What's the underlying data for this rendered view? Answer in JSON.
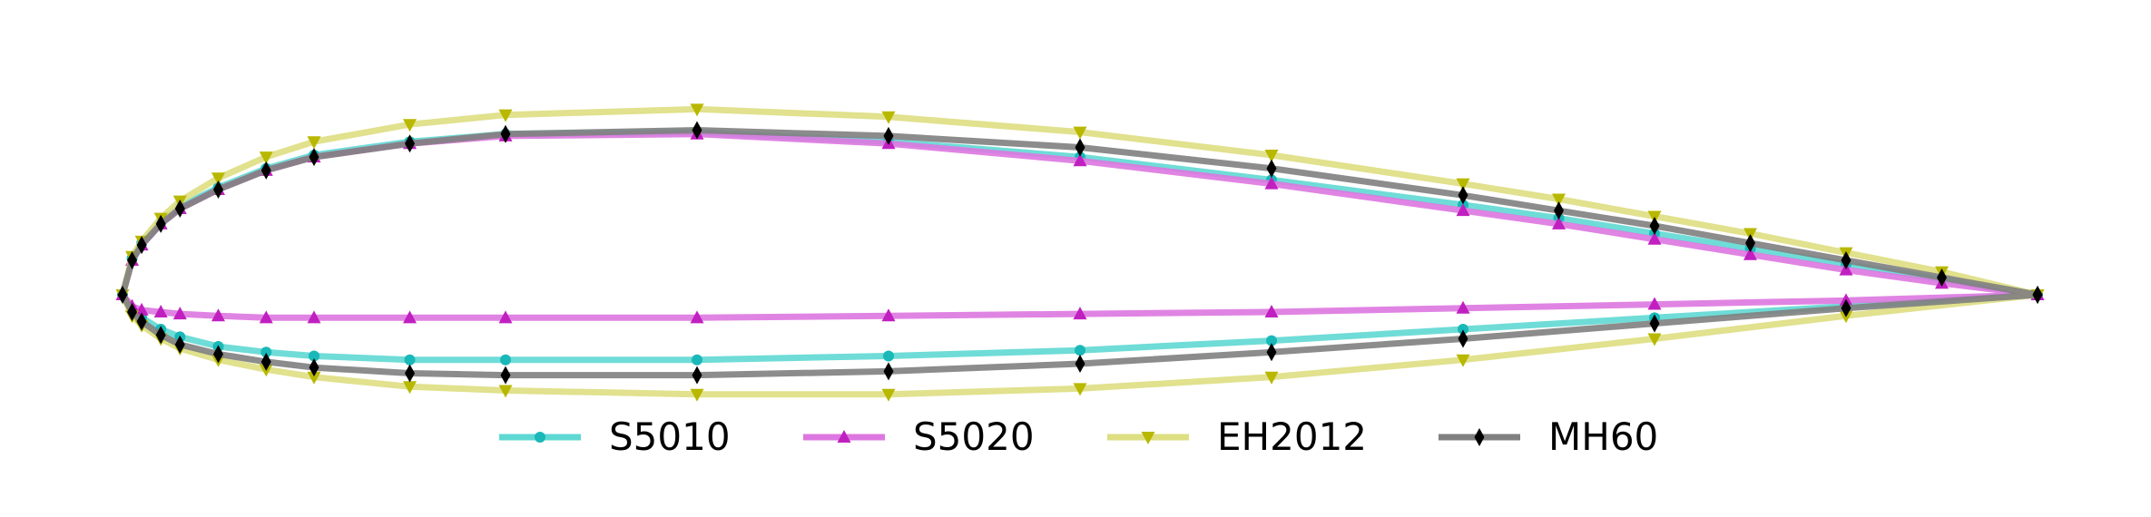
{
  "chart_data": {
    "type": "line",
    "title": "",
    "xlabel": "",
    "ylabel": "",
    "axes_visible": false,
    "aspect": "equal",
    "xlim": [
      -0.005,
      1.01
    ],
    "ylim": [
      -0.12,
      0.16
    ],
    "grid": false,
    "legend_position": "bottom-center, single row",
    "series": [
      {
        "name": "S5010",
        "color": "#5fd8d3",
        "marker": "circle",
        "marker_color": "#1ab8b8",
        "x": [
          1.0,
          0.95,
          0.9,
          0.85,
          0.8,
          0.75,
          0.7,
          0.6,
          0.5,
          0.4,
          0.3,
          0.2,
          0.15,
          0.1,
          0.075,
          0.05,
          0.03,
          0.02,
          0.01,
          0.005,
          0.0,
          0.005,
          0.01,
          0.02,
          0.03,
          0.05,
          0.075,
          0.1,
          0.15,
          0.2,
          0.3,
          0.4,
          0.5,
          0.6,
          0.7,
          0.8,
          0.9,
          1.0
        ],
        "y": [
          0.0,
          0.008,
          0.016,
          0.024,
          0.032,
          0.04,
          0.047,
          0.06,
          0.072,
          0.08,
          0.085,
          0.084,
          0.08,
          0.073,
          0.066,
          0.056,
          0.046,
          0.038,
          0.027,
          0.019,
          0.0,
          -0.008,
          -0.012,
          -0.018,
          -0.022,
          -0.027,
          -0.03,
          -0.032,
          -0.034,
          -0.034,
          -0.034,
          -0.032,
          -0.029,
          -0.024,
          -0.018,
          -0.012,
          -0.006,
          0.0
        ]
      },
      {
        "name": "S5020",
        "color": "#dd77e0",
        "marker": "triangle-up",
        "marker_color": "#c020c0",
        "x": [
          1.0,
          0.95,
          0.9,
          0.85,
          0.8,
          0.75,
          0.7,
          0.6,
          0.5,
          0.4,
          0.3,
          0.2,
          0.15,
          0.1,
          0.075,
          0.05,
          0.03,
          0.02,
          0.01,
          0.005,
          0.0,
          0.005,
          0.01,
          0.02,
          0.03,
          0.05,
          0.075,
          0.1,
          0.15,
          0.2,
          0.3,
          0.4,
          0.5,
          0.6,
          0.7,
          0.8,
          0.9,
          1.0
        ],
        "y": [
          0.0,
          0.006,
          0.013,
          0.021,
          0.029,
          0.037,
          0.044,
          0.058,
          0.07,
          0.079,
          0.084,
          0.083,
          0.079,
          0.072,
          0.065,
          0.055,
          0.045,
          0.037,
          0.026,
          0.018,
          0.0,
          -0.006,
          -0.008,
          -0.009,
          -0.01,
          -0.011,
          -0.012,
          -0.012,
          -0.012,
          -0.012,
          -0.012,
          -0.011,
          -0.01,
          -0.009,
          -0.007,
          -0.005,
          -0.003,
          0.0
        ]
      },
      {
        "name": "EH2012",
        "color": "#dede82",
        "marker": "triangle-down",
        "marker_color": "#b8b800",
        "x": [
          1.0,
          0.95,
          0.9,
          0.85,
          0.8,
          0.75,
          0.7,
          0.6,
          0.5,
          0.4,
          0.3,
          0.2,
          0.15,
          0.1,
          0.075,
          0.05,
          0.03,
          0.02,
          0.01,
          0.005,
          0.0,
          0.005,
          0.01,
          0.02,
          0.03,
          0.05,
          0.075,
          0.1,
          0.15,
          0.2,
          0.3,
          0.4,
          0.5,
          0.6,
          0.7,
          0.8,
          0.9,
          1.0
        ],
        "y": [
          0.0,
          0.012,
          0.022,
          0.032,
          0.041,
          0.05,
          0.058,
          0.073,
          0.085,
          0.093,
          0.097,
          0.094,
          0.089,
          0.08,
          0.072,
          0.061,
          0.049,
          0.04,
          0.028,
          0.02,
          0.0,
          -0.011,
          -0.016,
          -0.023,
          -0.028,
          -0.034,
          -0.039,
          -0.043,
          -0.048,
          -0.05,
          -0.052,
          -0.052,
          -0.049,
          -0.043,
          -0.034,
          -0.023,
          -0.011,
          0.0
        ]
      },
      {
        "name": "MH60",
        "color": "#808080",
        "marker": "thin-diamond",
        "marker_color": "#000000",
        "x": [
          1.0,
          0.95,
          0.9,
          0.85,
          0.8,
          0.75,
          0.7,
          0.6,
          0.5,
          0.4,
          0.3,
          0.2,
          0.15,
          0.1,
          0.075,
          0.05,
          0.03,
          0.02,
          0.01,
          0.005,
          0.0,
          0.005,
          0.01,
          0.02,
          0.03,
          0.05,
          0.075,
          0.1,
          0.15,
          0.2,
          0.3,
          0.4,
          0.5,
          0.6,
          0.7,
          0.8,
          0.9,
          1.0
        ],
        "y": [
          0.0,
          0.009,
          0.018,
          0.027,
          0.036,
          0.044,
          0.052,
          0.066,
          0.077,
          0.083,
          0.086,
          0.084,
          0.079,
          0.072,
          0.065,
          0.055,
          0.045,
          0.037,
          0.026,
          0.018,
          0.0,
          -0.009,
          -0.014,
          -0.021,
          -0.026,
          -0.031,
          -0.035,
          -0.038,
          -0.041,
          -0.042,
          -0.042,
          -0.04,
          -0.036,
          -0.03,
          -0.023,
          -0.015,
          -0.007,
          0.0
        ]
      }
    ]
  }
}
